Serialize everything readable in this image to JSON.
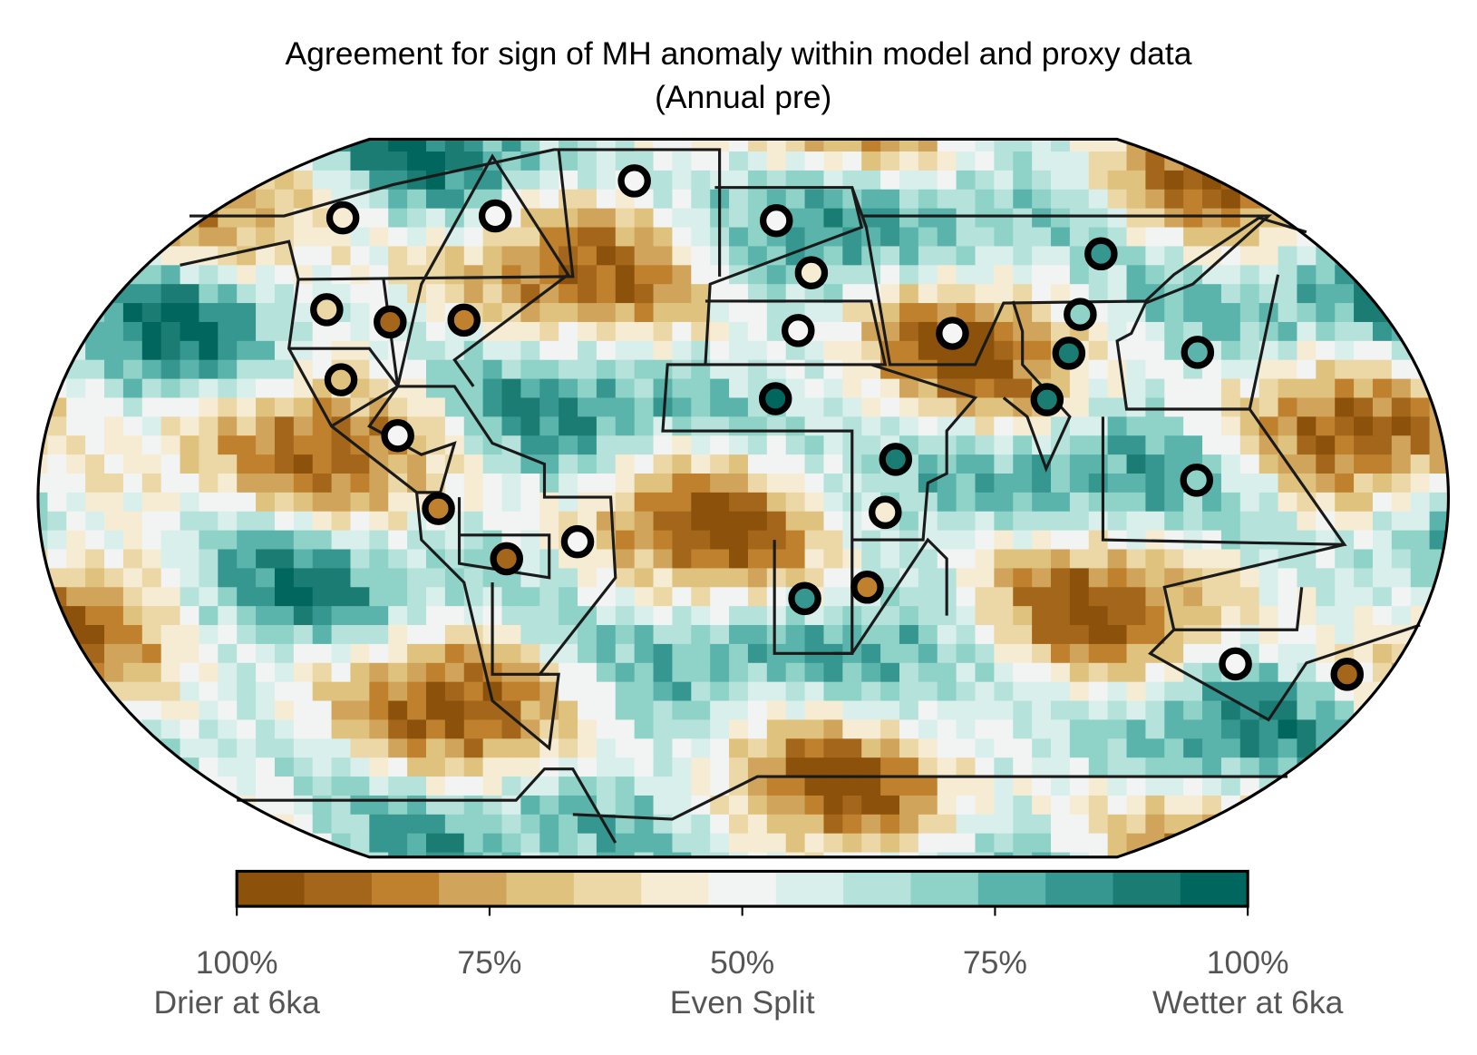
{
  "title": "Agreement for sign of MH anomaly within model and proxy data",
  "subtitle": "(Annual pre)",
  "colorbar": {
    "colors": [
      "#8c510a",
      "#a3661a",
      "#bf812d",
      "#d1a45b",
      "#dfc27d",
      "#ecd7a6",
      "#f6ecd3",
      "#f2f4f3",
      "#d9efec",
      "#b6e2dc",
      "#8fd2c7",
      "#5ab4ac",
      "#35978f",
      "#1a7c73",
      "#01665e"
    ],
    "ticks": [
      {
        "label": "100%",
        "caption": "Drier at 6ka"
      },
      {
        "label": "75%"
      },
      {
        "label": "50%",
        "caption": "Even Split"
      },
      {
        "label": "75%"
      },
      {
        "label": "100%",
        "caption": "Wetter at 6ka"
      }
    ]
  }
}
